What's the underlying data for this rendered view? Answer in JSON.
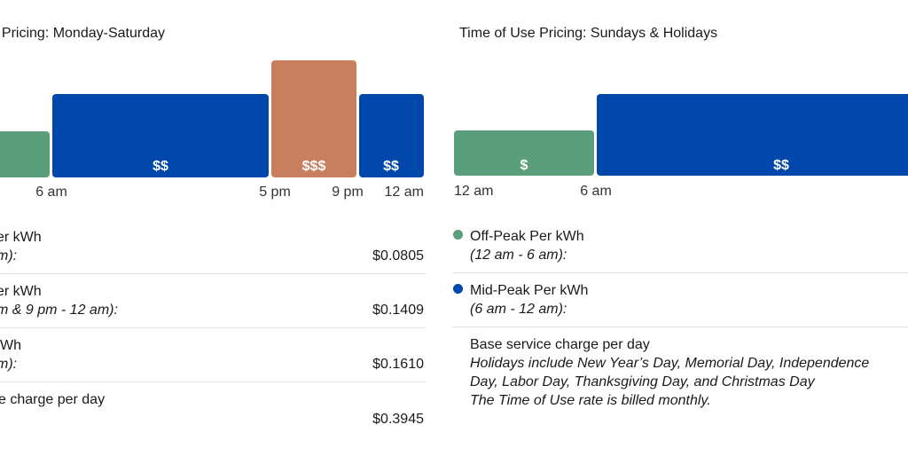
{
  "chart_data": [
    {
      "type": "bar",
      "title": "Pricing: Monday-Saturday",
      "series": [
        {
          "price_level": "off-peak",
          "label": "",
          "start": "12 am",
          "end": "6 am",
          "color": "#5a9e7c"
        },
        {
          "price_level": "mid-peak",
          "label": "$$",
          "start": "6 am",
          "end": "5 pm",
          "color": "#0047ab"
        },
        {
          "price_level": "on-peak",
          "label": "$$$",
          "start": "5 pm",
          "end": "9 pm",
          "color": "#c97e5e"
        },
        {
          "price_level": "mid-peak",
          "label": "$$",
          "start": "9 pm",
          "end": "12 am",
          "color": "#0047ab"
        }
      ],
      "tick_labels": [
        "6 am",
        "5 pm",
        "9 pm",
        "12 am"
      ],
      "rates": [
        {
          "name": "er kWh",
          "hours": "m):",
          "price": "$0.0805"
        },
        {
          "name": "er kWh",
          "hours": "m & 9 pm - 12 am):",
          "price": "$0.1409"
        },
        {
          "name": "Wh",
          "hours": "m):",
          "price": "$0.1610"
        },
        {
          "name": "e charge per day",
          "hours": "",
          "price": "$0.3945"
        }
      ]
    },
    {
      "type": "bar",
      "title": "Time of Use Pricing: Sundays & Holidays",
      "series": [
        {
          "price_level": "off-peak",
          "label": "$",
          "start": "12 am",
          "end": "6 am",
          "color": "#5a9e7c"
        },
        {
          "price_level": "mid-peak",
          "label": "$$",
          "start": "6 am",
          "end": "12 am",
          "color": "#0047ab"
        }
      ],
      "tick_labels": [
        "12 am",
        "6 am"
      ],
      "rates": [
        {
          "name": "Off-Peak Per kWh",
          "hours": "(12 am - 6 am):",
          "color": "#5a9e7c"
        },
        {
          "name": "Mid-Peak Per kWh",
          "hours": "(6 am - 12 am):",
          "color": "#0047ab"
        },
        {
          "name": "Base service charge per day",
          "hours": ""
        }
      ],
      "notes": [
        "Holidays include New Year’s Day, Memorial Day, Independence Day, Labor Day, Thanksgiving Day, and Christmas Day",
        "The Time of Use rate is billed monthly."
      ]
    }
  ]
}
